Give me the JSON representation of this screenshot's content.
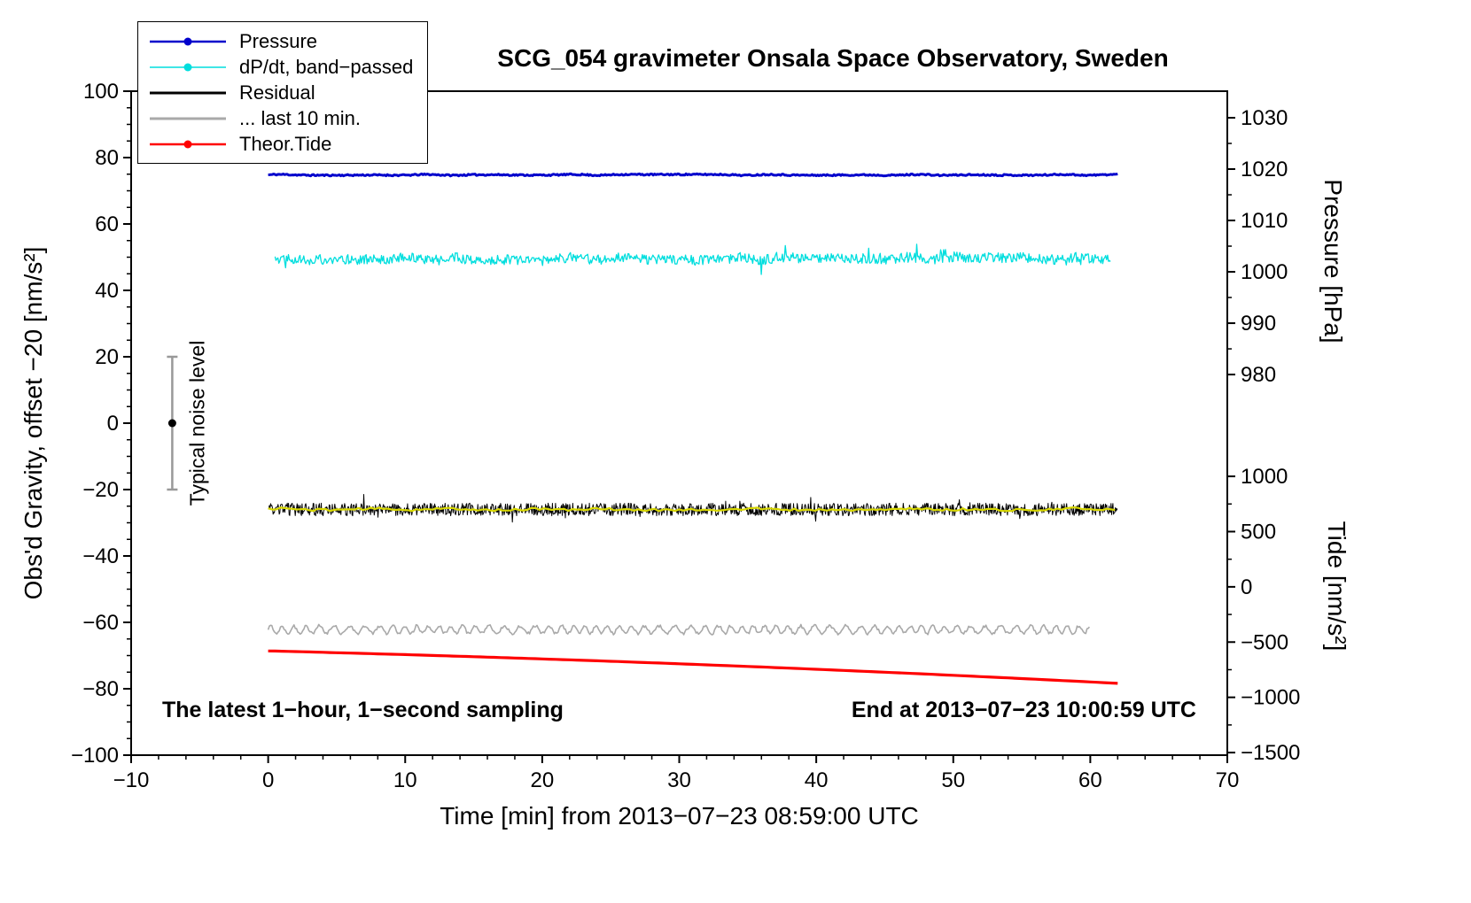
{
  "chart_data": {
    "type": "line",
    "title": "SCG_054 gravimeter Onsala Space Observatory, Sweden",
    "annotations": {
      "left": "The latest 1−hour, 1−second sampling",
      "right": "End at 2013−07−23 10:00:59 UTC"
    },
    "axes": {
      "x": {
        "label": "Time [min] from 2013−07−23 08:59:00 UTC",
        "min": -10,
        "max": 70,
        "major_ticks": [
          -10,
          0,
          10,
          20,
          30,
          40,
          50,
          60,
          70
        ],
        "minor_step": 2
      },
      "y_left": {
        "label": "Obs'd Gravity, offset −20 [nm/s²]",
        "min": -100,
        "max": 100,
        "major_ticks": [
          -100,
          -80,
          -60,
          -40,
          -20,
          0,
          20,
          40,
          60,
          80,
          100
        ],
        "minor_step": 5
      }
    },
    "right_axes": [
      {
        "label": "Pressure [hPa]",
        "major_ticks": [
          1030,
          1020,
          1010,
          1000,
          990,
          980
        ],
        "anchor_value": 1030,
        "anchor_left_unit": 92,
        "left_units_per_unit": 1.547
      },
      {
        "label": "Tide [nm/s²]",
        "major_ticks": [
          1000,
          500,
          0,
          -500,
          -1000,
          -1500
        ],
        "anchor_value": 0,
        "anchor_left_unit": -49.3,
        "left_units_per_unit": 0.03328
      }
    ],
    "legend": {
      "items": [
        {
          "label": "Pressure",
          "color": "#0000cc",
          "line_width": 2.5,
          "marker": true
        },
        {
          "label": "dP/dt, band−passed",
          "color": "#00dede",
          "line_width": 1.5,
          "marker": true
        },
        {
          "label": "Residual",
          "color": "#000000",
          "line_width": 3,
          "marker": false
        },
        {
          "label": "... last 10 min.",
          "color": "#a9a9a9",
          "line_width": 3,
          "marker": false
        },
        {
          "label": "Theor.Tide",
          "color": "#ff0000",
          "line_width": 2.5,
          "marker": true
        }
      ]
    },
    "noise_marker": {
      "x": -7,
      "center_y": 0,
      "half_span": 20,
      "label": "Typical noise level",
      "color": "#999999"
    },
    "series": [
      {
        "name": "Pressure",
        "color": "#0000cc",
        "width": 3,
        "seed": 11,
        "x_start": 0,
        "x_end": 62,
        "step": 0.1,
        "baseline": 74.8,
        "trend": 0,
        "curve": 0,
        "noise": 0.22,
        "wave_amp": 0.12,
        "wave_period": 9,
        "approx_right_axis_value": "1018.8 hPa"
      },
      {
        "name": "dP/dt, band-passed",
        "color": "#00dede",
        "width": 1.3,
        "seed": 22,
        "x_start": 0.5,
        "x_end": 61.5,
        "step": 0.07,
        "baseline": 49.6,
        "trend": 0,
        "curve": 0,
        "noise": 1.5,
        "wave_amp": 0.4,
        "wave_period": 6.3,
        "spike_prob": 0.03,
        "spike_amp": 3.2
      },
      {
        "name": "Residual",
        "color": "#000000",
        "width": 1,
        "seed": 33,
        "x_start": 0,
        "x_end": 62,
        "step": 0.045,
        "baseline": -26,
        "trend": 0,
        "curve": 0,
        "noise": 1.9,
        "spike_prob": 0.02,
        "spike_amp": 3.0
      },
      {
        "name": "Residual smoothed",
        "color": "#d8d800",
        "width": 2.2,
        "seed": 44,
        "x_start": 0,
        "x_end": 62,
        "step": 0.3,
        "baseline": -25.9,
        "trend": 0,
        "curve": 0,
        "noise": 0.35,
        "wave_amp": 0.25,
        "wave_period": 11
      },
      {
        "name": "... last 10 min.",
        "color": "#a9a9a9",
        "width": 1.6,
        "seed": 55,
        "x_start": 0,
        "x_end": 60,
        "step": 0.09,
        "baseline": -62.2,
        "trend": 0,
        "curve": 0,
        "noise": 0.45,
        "wave_amp": 1.15,
        "wave_period": 0.95
      },
      {
        "name": "Theor.Tide",
        "color": "#ff0000",
        "width": 3.2,
        "seed": 66,
        "x_start": 0,
        "x_end": 62,
        "step": 0.5,
        "baseline": -68.6,
        "trend": -0.103,
        "curve": -0.00088,
        "noise": 0,
        "approx_right_axis_values": "-600 to -900 nm/s²"
      }
    ]
  }
}
